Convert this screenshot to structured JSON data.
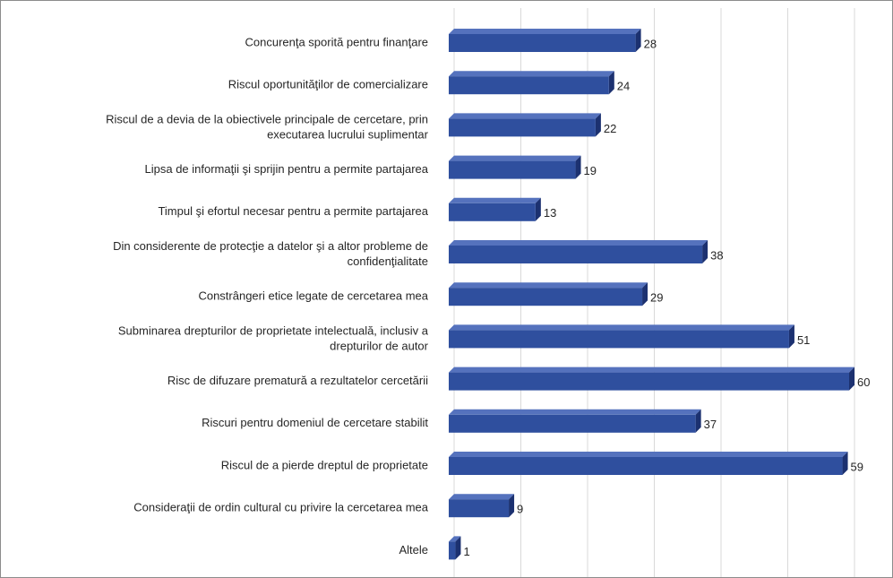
{
  "chart_data": {
    "type": "bar",
    "orientation": "horizontal",
    "categories": [
      [
        "Concurenţa sporită pentru finanţare"
      ],
      [
        "Riscul oportunităţilor de comercializare"
      ],
      [
        "Riscul de a devia de la obiectivele principale de cercetare, prin",
        "executarea lucrului suplimentar"
      ],
      [
        "Lipsa de informaţii şi sprijin pentru a permite partajarea"
      ],
      [
        "Timpul şi efortul necesar pentru a permite partajarea"
      ],
      [
        "Din considerente de protecţie a datelor şi a altor probleme de",
        "confidenţialitate"
      ],
      [
        "Constrângeri etice legate de cercetarea mea"
      ],
      [
        "Subminarea drepturilor de proprietate intelectuală, inclusiv a",
        "drepturilor de autor"
      ],
      [
        "Risc de difuzare prematură a rezultatelor cercetării"
      ],
      [
        "Riscuri pentru domeniul de cercetare stabilit"
      ],
      [
        "Riscul de a pierde dreptul de proprietate"
      ],
      [
        "Consideraţii de ordin cultural cu privire la cercetarea mea"
      ],
      [
        "Altele"
      ]
    ],
    "values": [
      28,
      24,
      22,
      19,
      13,
      38,
      29,
      51,
      60,
      37,
      59,
      9,
      1
    ],
    "data_labels": [
      "28",
      "24",
      "22",
      "19",
      "13",
      "38",
      "29",
      "51",
      "60",
      "37",
      "59",
      "9",
      "1"
    ],
    "xlim": [
      0,
      60
    ],
    "grid": true,
    "legend": "none",
    "style": "3d-bar"
  },
  "colors": {
    "bar_front": "#2f4f9e",
    "bar_top": "#5572bd",
    "bar_side": "#1c3170",
    "gridline": "#d9d9d9",
    "text": "#262626"
  }
}
